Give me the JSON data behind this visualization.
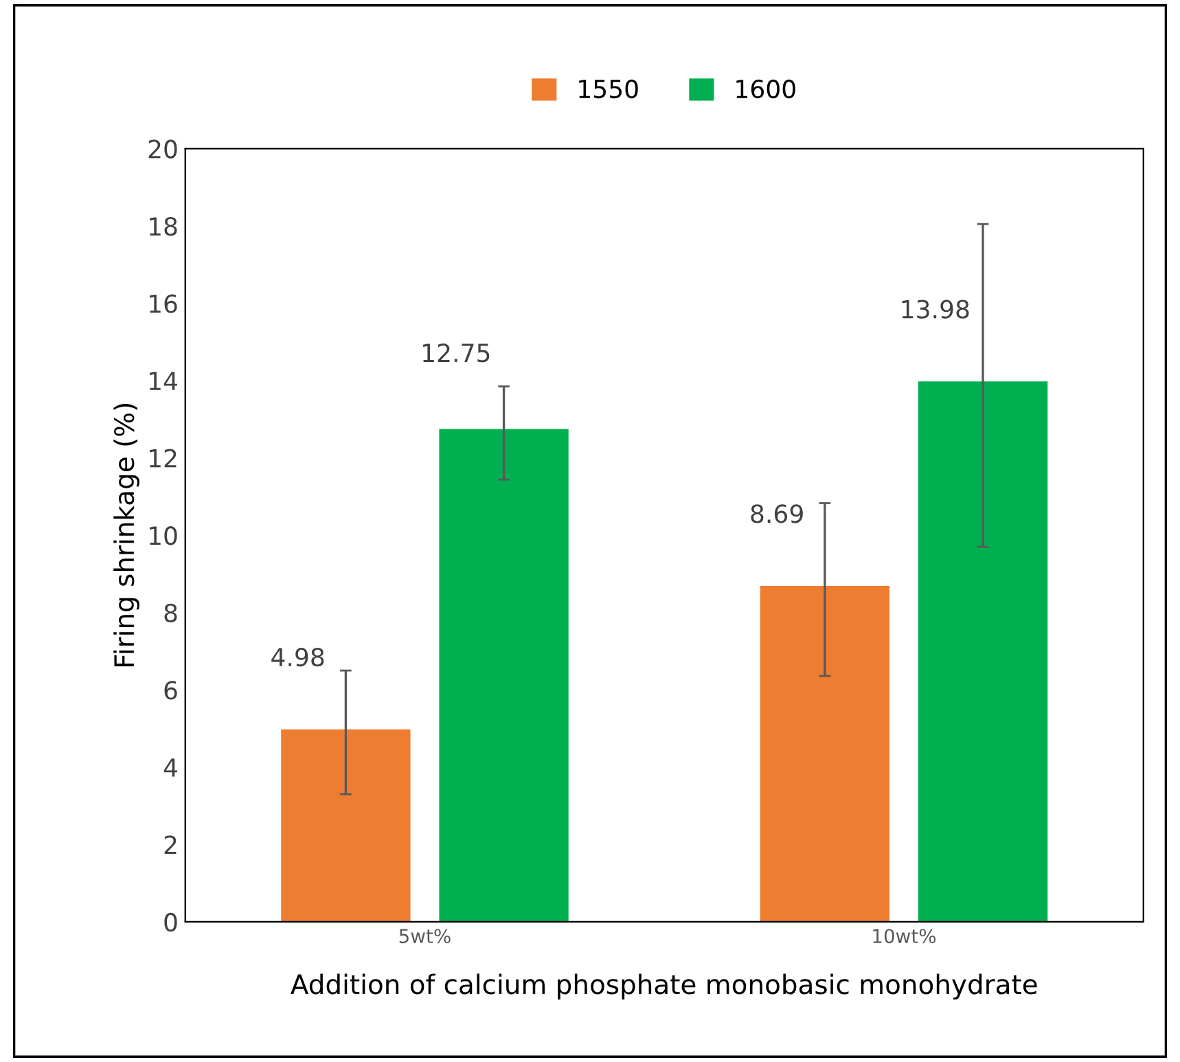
{
  "chart_data": {
    "type": "bar",
    "xlabel": "Addition of calcium phosphate monobasic monohydrate",
    "ylabel": "Firing shrinkage (%)",
    "categories": [
      "5wt%",
      "10wt%"
    ],
    "series": [
      {
        "name": "1550",
        "color": "#ed7d31",
        "values": [
          4.98,
          8.69
        ],
        "errors": [
          [
            3.3,
            6.5
          ],
          [
            6.36,
            10.83
          ]
        ]
      },
      {
        "name": "1600",
        "color": "#00b050",
        "values": [
          12.75,
          13.98
        ],
        "errors": [
          [
            11.44,
            13.85
          ],
          [
            9.7,
            18.05
          ]
        ]
      }
    ],
    "ylim": [
      0,
      20
    ],
    "yticks": [
      0,
      2,
      4,
      6,
      8,
      10,
      12,
      14,
      16,
      18,
      20
    ],
    "grid": false,
    "legend": "top",
    "data_labels": true
  }
}
